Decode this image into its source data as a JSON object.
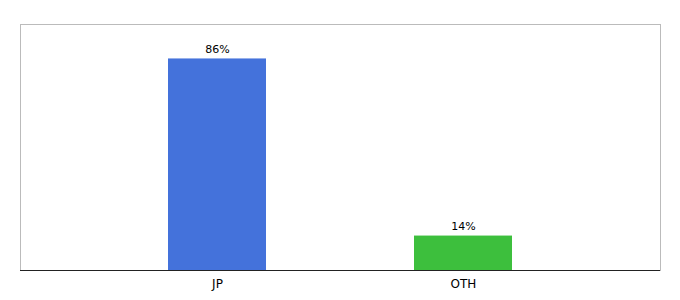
{
  "chart_data": {
    "type": "bar",
    "categories": [
      "JP",
      "OTH"
    ],
    "values": [
      86,
      14
    ],
    "value_labels": [
      "86%",
      "14%"
    ],
    "colors": [
      "#4472db",
      "#3dbf3d"
    ],
    "ylim": [
      0,
      100
    ],
    "data_labels": true,
    "tick_labels": "x"
  }
}
